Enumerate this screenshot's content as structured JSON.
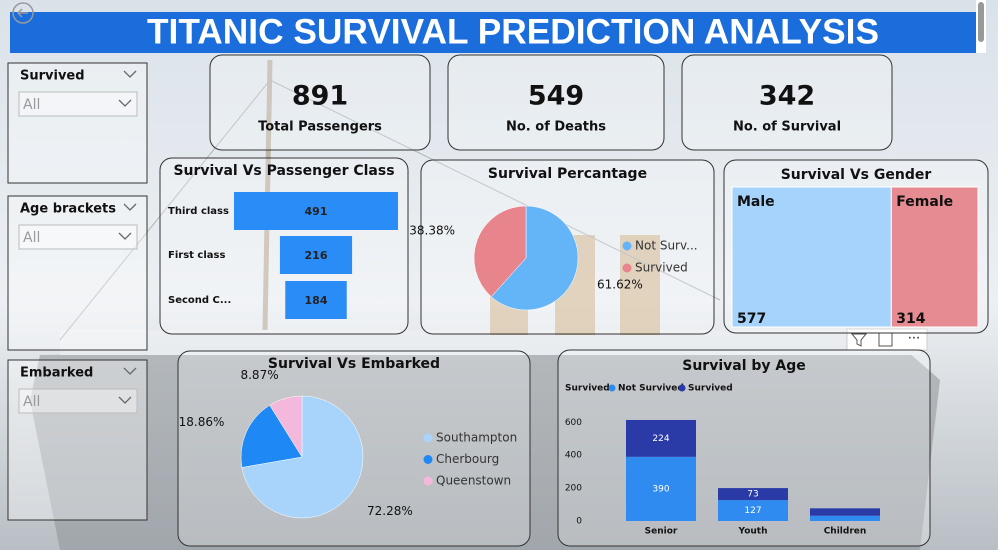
{
  "title": "TITANIC SURVIVAL PREDICTION ANALYSIS",
  "filters": [
    {
      "label": "Survived",
      "value": "All"
    },
    {
      "label": "Age brackets",
      "value": "All"
    },
    {
      "label": "Embarked",
      "value": "All"
    }
  ],
  "kpis": [
    {
      "value": 891,
      "label": "Total Passengers"
    },
    {
      "value": 549,
      "label": "No. of Deaths"
    },
    {
      "value": 342,
      "label": "No. of Survival"
    }
  ],
  "chart_data": [
    {
      "type": "funnel",
      "title": "Survival Vs Passenger Class",
      "categories": [
        "Third class",
        "First class",
        "Second C..."
      ],
      "values": [
        491,
        216,
        184
      ],
      "color": "#2a8cf6"
    },
    {
      "type": "pie",
      "title": "Survival Percantage",
      "categories": [
        "Not Surv...",
        "Survived"
      ],
      "values": [
        61.62,
        38.38
      ],
      "value_labels": [
        "61.62%",
        "38.38%"
      ],
      "colors": [
        "#64b5f8",
        "#e8848c"
      ]
    },
    {
      "type": "treemap",
      "title": "Survival Vs Gender",
      "categories": [
        "Male",
        "Female"
      ],
      "values": [
        577,
        314
      ],
      "colors": [
        "#a6d3fb",
        "#e58b91"
      ]
    },
    {
      "type": "pie",
      "title": "Survival Vs Embarked",
      "categories": [
        "Southampton",
        "Cherbourg",
        "Queenstown"
      ],
      "values": [
        72.28,
        18.86,
        8.87
      ],
      "value_labels": [
        "72.28%",
        "18.86%",
        "8.87%"
      ],
      "colors": [
        "#a8d4fb",
        "#1e88f5",
        "#f4b8dc"
      ]
    },
    {
      "type": "stacked_bar",
      "title": "Survival by Age",
      "legend_title": "Survived",
      "categories": [
        "Senior",
        "Youth",
        "Children"
      ],
      "series": [
        {
          "name": "Not Survived",
          "color": "#2f8bf0",
          "values": [
            390,
            127,
            32
          ]
        },
        {
          "name": "Survived",
          "color": "#2a3ba8",
          "values": [
            224,
            73,
            45
          ]
        }
      ],
      "ylim": [
        0,
        620
      ],
      "yticks": [
        0,
        200,
        400,
        600
      ]
    }
  ]
}
